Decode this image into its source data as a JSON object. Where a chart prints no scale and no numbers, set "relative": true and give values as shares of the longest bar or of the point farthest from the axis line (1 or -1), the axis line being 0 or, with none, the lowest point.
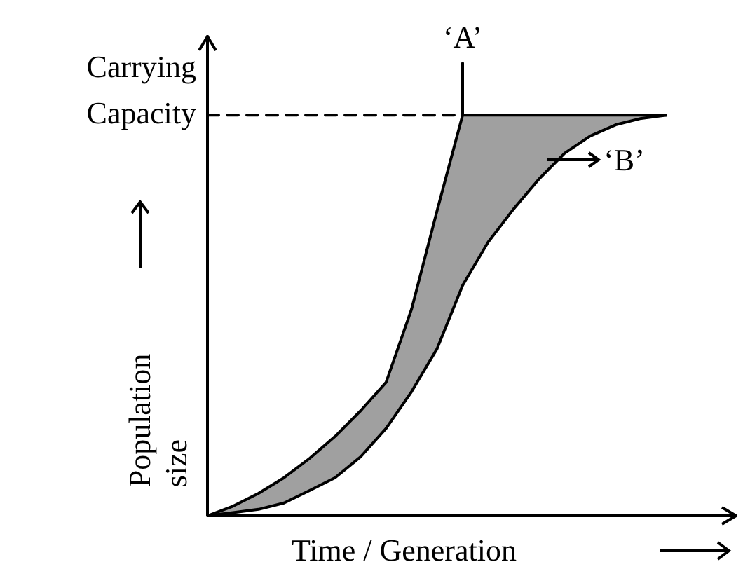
{
  "chart_data": {
    "type": "line",
    "relative": true,
    "xlabel": "Time / Generation",
    "ylabel": "Population size",
    "legend": false,
    "marker": "none",
    "categories": [
      null,
      null,
      null,
      null,
      null,
      null,
      null,
      null,
      null,
      null,
      null,
      null,
      null,
      null,
      null,
      null,
      null,
      null,
      null,
      null,
      null
    ],
    "series": [
      {
        "color": "#000000",
        "values": [
          0,
          0.024,
          0.056,
          0.095,
          0.143,
          0.198,
          0.262,
          0.333,
          0.516,
          0.762,
          1,
          1,
          1,
          1,
          1,
          1,
          1,
          1,
          1,
          null,
          null
        ]
      },
      {
        "color": "#000000",
        "values": [
          0,
          0.008,
          0.016,
          0.032,
          0.063,
          0.095,
          0.147,
          0.218,
          0.31,
          0.417,
          0.575,
          0.683,
          0.766,
          0.841,
          0.905,
          0.948,
          0.976,
          0.992,
          1,
          null,
          null
        ]
      }
    ],
    "annotations": [
      "‘A’",
      "‘B’"
    ],
    "ref_lines": [
      {
        "axis": "y",
        "value": 1,
        "label": "Carrying Capacity",
        "line_style": "dashed",
        "color": "#000000"
      }
    ]
  }
}
